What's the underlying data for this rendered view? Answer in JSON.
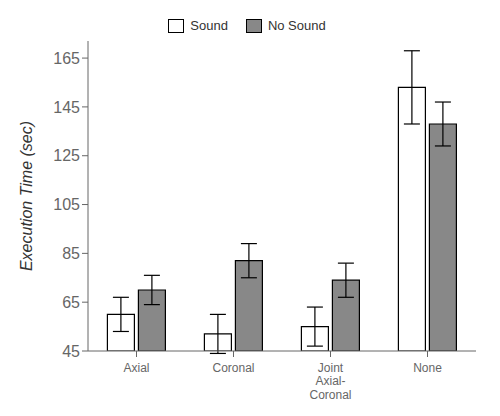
{
  "chart_data": {
    "type": "bar",
    "categories": [
      "Axial",
      "Coronal",
      "Joint\nAxial-\nCoronal",
      "None"
    ],
    "series": [
      {
        "name": "Sound",
        "color": "#ffffff",
        "values": [
          60,
          52,
          55,
          153
        ],
        "errors": [
          7,
          8,
          8,
          15
        ]
      },
      {
        "name": "No Sound",
        "color": "#888888",
        "values": [
          70,
          82,
          74,
          138
        ],
        "errors": [
          6,
          7,
          7,
          9
        ]
      }
    ],
    "ylabel": "Execution Time (sec)",
    "ylim": [
      45,
      172
    ],
    "yticks": [
      45,
      65,
      85,
      105,
      125,
      145,
      165
    ],
    "legend": "upper center",
    "grid": false
  }
}
